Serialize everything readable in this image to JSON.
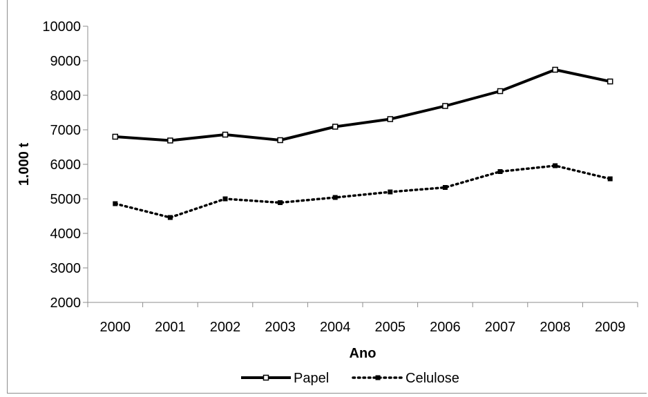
{
  "chart_data": {
    "type": "line",
    "xlabel": "Ano",
    "ylabel": "1.000 t",
    "categories": [
      "2000",
      "2001",
      "2002",
      "2003",
      "2004",
      "2005",
      "2006",
      "2007",
      "2008",
      "2009"
    ],
    "ylim": [
      2000,
      10000
    ],
    "yticks": [
      2000,
      3000,
      4000,
      5000,
      6000,
      7000,
      8000,
      9000,
      10000
    ],
    "grid": false,
    "legend_position": "bottom",
    "series": [
      {
        "name": "Papel",
        "style": "solid",
        "color": "#000000",
        "values": [
          6800,
          6690,
          6860,
          6700,
          7090,
          7310,
          7690,
          8120,
          8740,
          8400
        ]
      },
      {
        "name": "Celulose",
        "style": "dotted",
        "color": "#000000",
        "values": [
          4860,
          4460,
          5000,
          4890,
          5040,
          5200,
          5330,
          5790,
          5960,
          5580
        ]
      }
    ]
  }
}
